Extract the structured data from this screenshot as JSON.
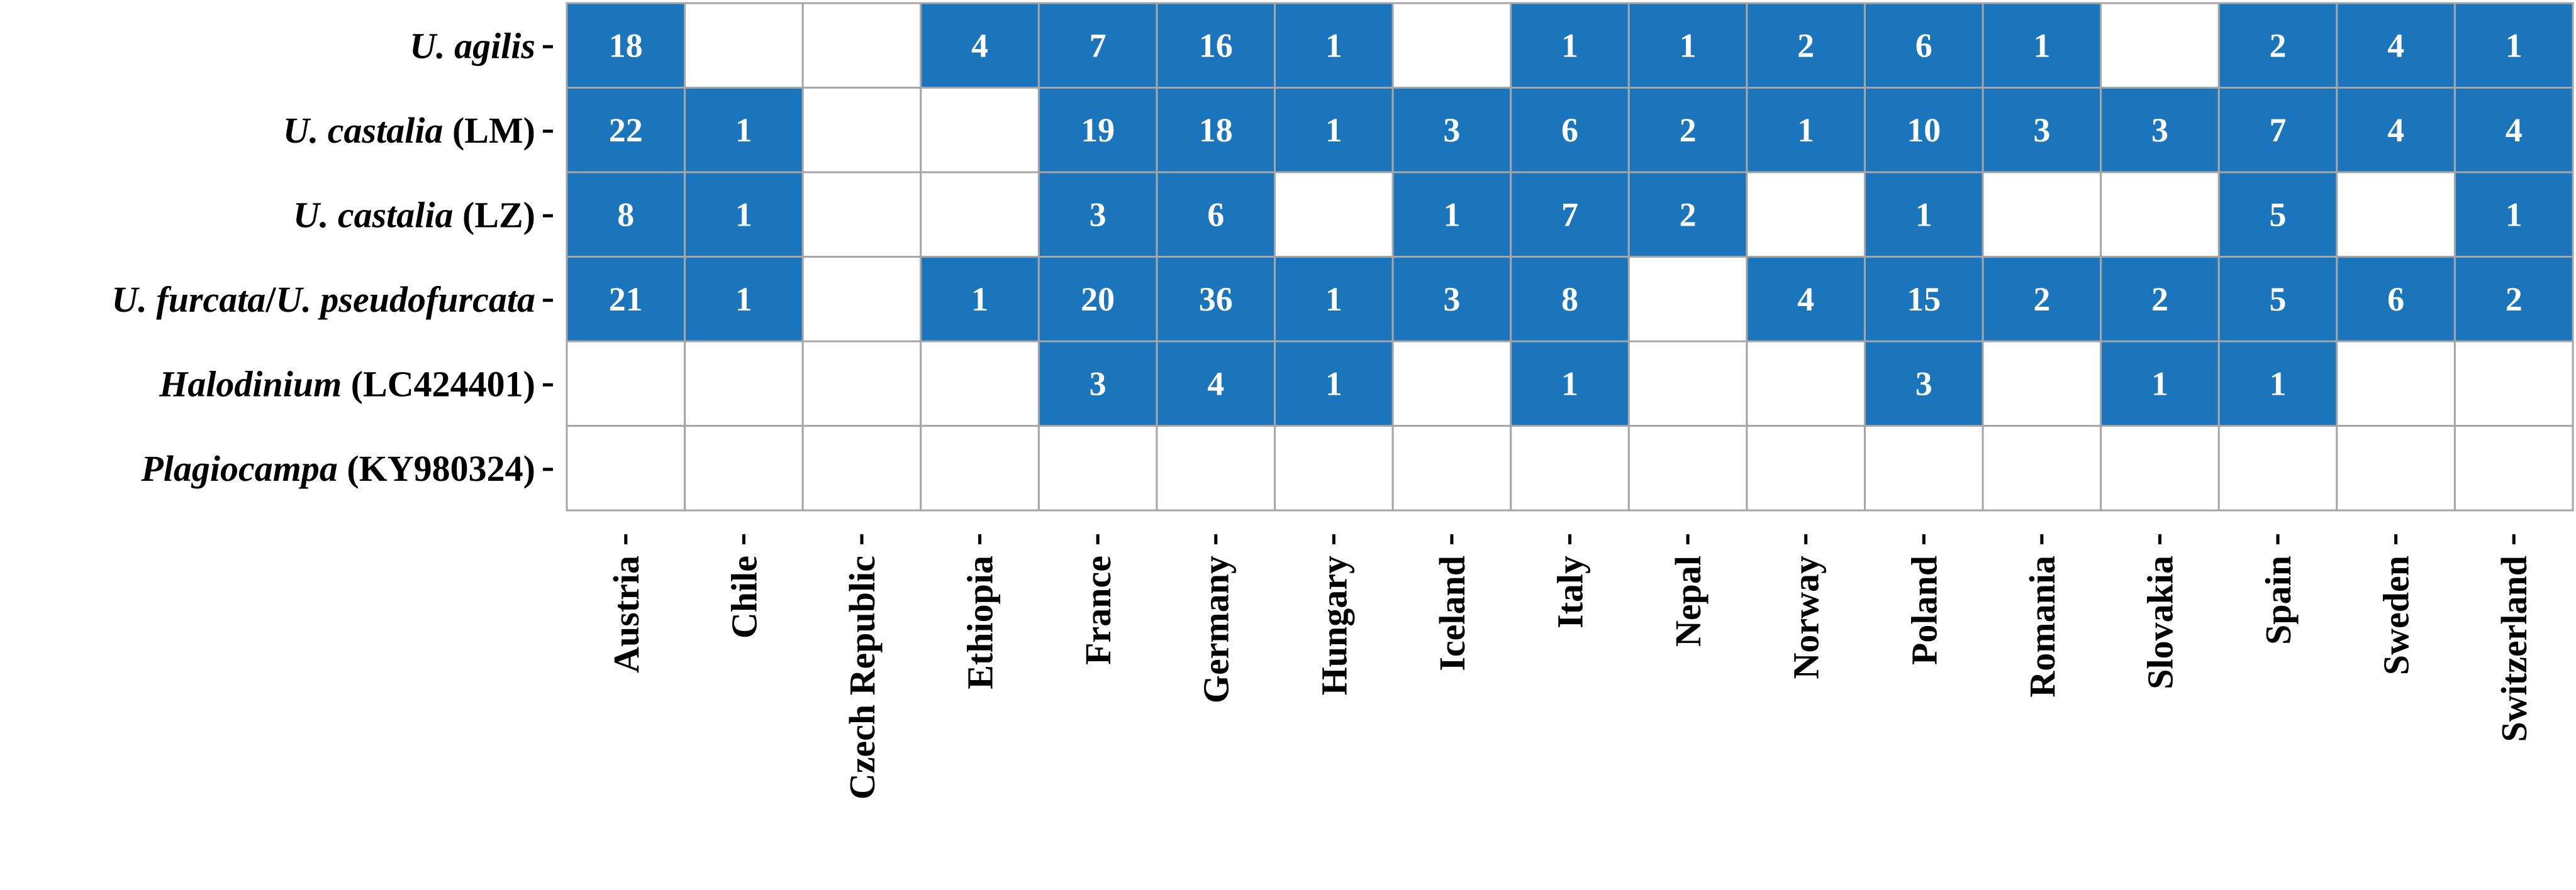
{
  "chart_data": {
    "type": "heatmap",
    "color": "#1a75bc",
    "rows": [
      [
        {
          "text": "U. agilis",
          "italic": true
        }
      ],
      [
        {
          "text": "U. castalia",
          "italic": true
        },
        {
          "text": " (LM)",
          "italic": false
        }
      ],
      [
        {
          "text": "U. castalia",
          "italic": true
        },
        {
          "text": " (LZ)",
          "italic": false
        }
      ],
      [
        {
          "text": "U. furcata",
          "italic": true
        },
        {
          "text": "/",
          "italic": false
        },
        {
          "text": "U. pseudofurcata",
          "italic": true
        }
      ],
      [
        {
          "text": "Halodinium",
          "italic": true
        },
        {
          "text": " (LC424401)",
          "italic": false
        }
      ],
      [
        {
          "text": "Plagiocampa",
          "italic": true
        },
        {
          "text": " (KY980324)",
          "italic": false
        }
      ]
    ],
    "categories": [
      "Austria",
      "Chile",
      "Czech Republic",
      "Ethiopia",
      "France",
      "Germany",
      "Hungary",
      "Iceland",
      "Italy",
      "Nepal",
      "Norway",
      "Poland",
      "Romania",
      "Slovakia",
      "Spain",
      "Sweden",
      "Switzerland"
    ],
    "values": [
      [
        18,
        null,
        null,
        4,
        7,
        16,
        1,
        null,
        1,
        1,
        2,
        6,
        1,
        null,
        2,
        4,
        1
      ],
      [
        22,
        1,
        null,
        null,
        19,
        18,
        1,
        3,
        6,
        2,
        1,
        10,
        3,
        3,
        7,
        4,
        4
      ],
      [
        8,
        1,
        null,
        null,
        3,
        6,
        null,
        1,
        7,
        2,
        null,
        1,
        null,
        null,
        5,
        null,
        1
      ],
      [
        21,
        1,
        null,
        1,
        20,
        36,
        1,
        3,
        8,
        null,
        4,
        15,
        2,
        2,
        5,
        6,
        2
      ],
      [
        null,
        null,
        null,
        null,
        3,
        4,
        1,
        null,
        1,
        null,
        null,
        3,
        null,
        1,
        1,
        null,
        null
      ],
      [
        null,
        null,
        null,
        null,
        null,
        null,
        null,
        null,
        null,
        null,
        null,
        null,
        null,
        null,
        null,
        null,
        null
      ]
    ]
  }
}
